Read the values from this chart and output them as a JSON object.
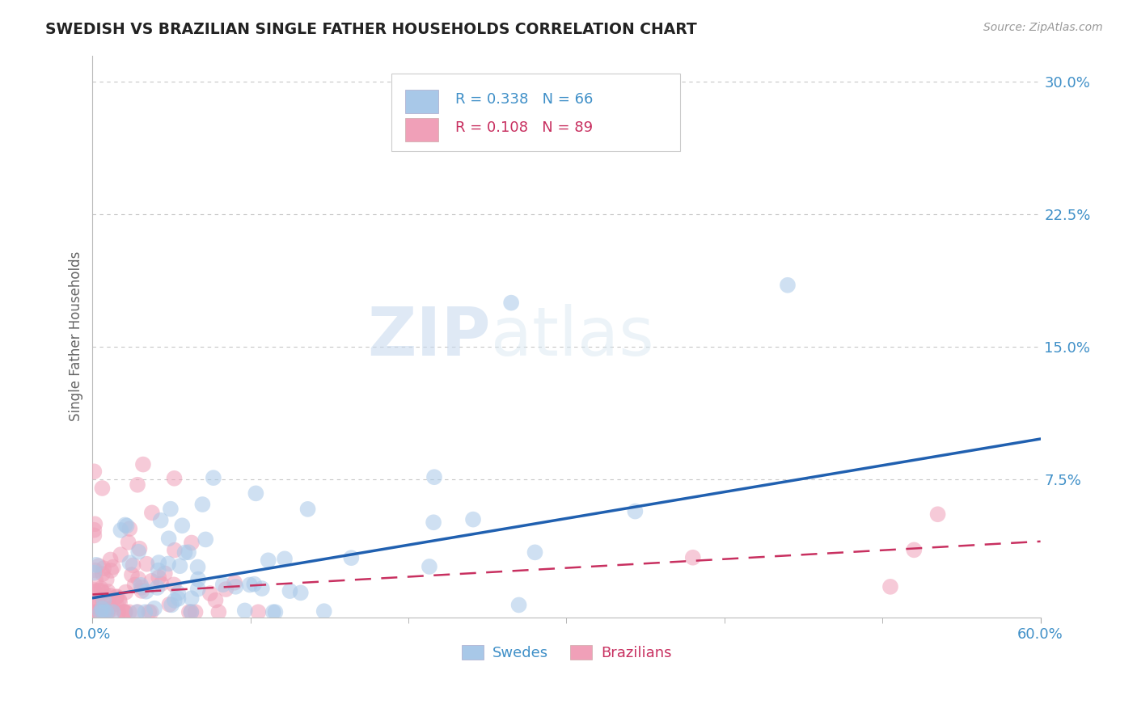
{
  "title": "SWEDISH VS BRAZILIAN SINGLE FATHER HOUSEHOLDS CORRELATION CHART",
  "source": "Source: ZipAtlas.com",
  "ylabel": "Single Father Households",
  "xlim": [
    0.0,
    0.6
  ],
  "ylim": [
    -0.003,
    0.315
  ],
  "swedes_R": 0.338,
  "swedes_N": 66,
  "brazilians_R": 0.108,
  "brazilians_N": 89,
  "swede_color": "#a8c8e8",
  "swede_line_color": "#2060b0",
  "brazilian_color": "#f0a0b8",
  "brazilian_line_color": "#c83060",
  "background_color": "#ffffff",
  "title_color": "#222222",
  "axis_tick_color": "#4090c8",
  "grid_color": "#c8c8c8",
  "legend_swedes": "Swedes",
  "legend_brazilians": "Brazilians",
  "yticks": [
    0.075,
    0.15,
    0.225,
    0.3
  ],
  "ytick_labels": [
    "7.5%",
    "15.0%",
    "22.5%",
    "30.0%"
  ],
  "sw_trend_x": [
    0.0,
    0.6
  ],
  "sw_trend_y": [
    0.008,
    0.098
  ],
  "br_trend_x": [
    0.0,
    0.6
  ],
  "br_trend_y": [
    0.01,
    0.04
  ]
}
